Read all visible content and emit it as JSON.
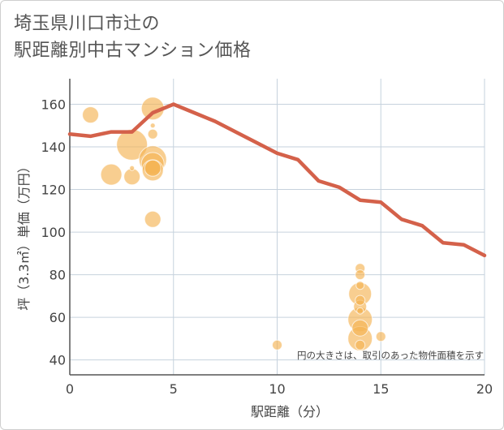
{
  "title_line1": "埼玉県川口市辻の",
  "title_line2": "駅距離別中古マンション価格",
  "chart_data": {
    "type": "scatter",
    "title": "埼玉県川口市辻の駅距離別中古マンション価格",
    "xlabel": "駅距離（分）",
    "ylabel": "坪（3.3㎡）単価（万円）",
    "xlim": [
      0,
      20
    ],
    "ylim": [
      33,
      172
    ],
    "x_ticks": [
      0,
      5,
      10,
      15,
      20
    ],
    "y_ticks": [
      40,
      60,
      80,
      100,
      120,
      140,
      160
    ],
    "annotation": "円の大きさは、取引のあった物件面積を示す",
    "colors": {
      "points": "#f5b454",
      "trend": "#d4614a",
      "grid": "#c6d2dd"
    },
    "trend_line": {
      "x": [
        0,
        1,
        2,
        3,
        4,
        5,
        6,
        7,
        8,
        9,
        10,
        11,
        12,
        13,
        14,
        15,
        16,
        17,
        18,
        19,
        20
      ],
      "y": [
        146,
        145,
        147,
        147,
        156,
        160,
        156,
        152,
        147,
        142,
        137,
        134,
        124,
        121,
        115,
        114,
        106,
        103,
        95,
        94,
        89
      ]
    },
    "points": [
      {
        "x": 1,
        "y": 155,
        "size": 10
      },
      {
        "x": 2,
        "y": 127,
        "size": 13
      },
      {
        "x": 3,
        "y": 126,
        "size": 10
      },
      {
        "x": 3,
        "y": 141,
        "size": 19
      },
      {
        "x": 3,
        "y": 130,
        "size": 3
      },
      {
        "x": 4,
        "y": 158,
        "size": 14
      },
      {
        "x": 4,
        "y": 150,
        "size": 3
      },
      {
        "x": 4,
        "y": 146,
        "size": 6
      },
      {
        "x": 4,
        "y": 134,
        "size": 17
      },
      {
        "x": 4,
        "y": 132,
        "size": 14
      },
      {
        "x": 4,
        "y": 130,
        "size": 10
      },
      {
        "x": 4,
        "y": 129,
        "size": 13
      },
      {
        "x": 4,
        "y": 106,
        "size": 10
      },
      {
        "x": 10,
        "y": 47,
        "size": 6
      },
      {
        "x": 14,
        "y": 83,
        "size": 6
      },
      {
        "x": 14,
        "y": 80,
        "size": 6
      },
      {
        "x": 14,
        "y": 75,
        "size": 5
      },
      {
        "x": 14,
        "y": 71,
        "size": 14
      },
      {
        "x": 14,
        "y": 68,
        "size": 6
      },
      {
        "x": 14,
        "y": 65,
        "size": 8
      },
      {
        "x": 14,
        "y": 63,
        "size": 4
      },
      {
        "x": 14,
        "y": 59,
        "size": 15
      },
      {
        "x": 14,
        "y": 55,
        "size": 10
      },
      {
        "x": 14,
        "y": 50,
        "size": 15
      },
      {
        "x": 14,
        "y": 47,
        "size": 6
      },
      {
        "x": 15,
        "y": 51,
        "size": 6
      }
    ]
  }
}
